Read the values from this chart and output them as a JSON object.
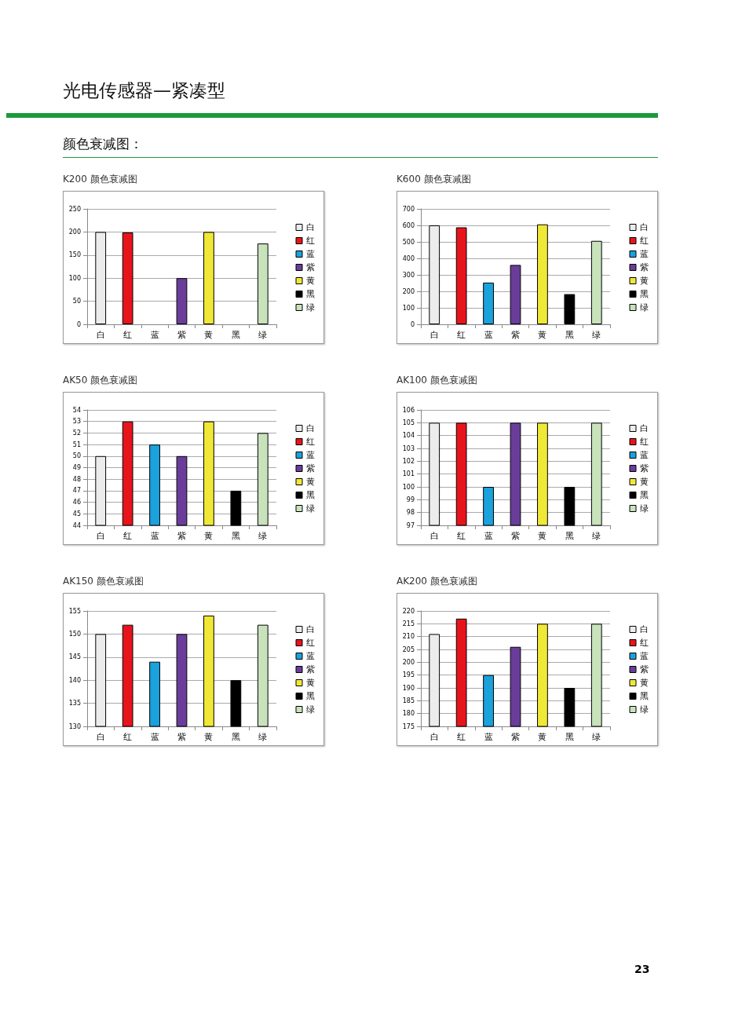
{
  "chart_data": [
    {
      "type": "bar",
      "title": "K200 颜色衰减图",
      "annotations": [
        "光电传感器—紧凑型",
        "颜色衰减图："
      ],
      "categories": [
        "白",
        "红",
        "蓝",
        "紫",
        "黄",
        "黑",
        "绿"
      ],
      "series": [
        {
          "name": "白",
          "color": "#ececec",
          "values": [
            200,
            null,
            null,
            null,
            null,
            null,
            null
          ]
        },
        {
          "name": "红",
          "color": "#e8141b",
          "values": [
            null,
            199,
            null,
            null,
            null,
            null,
            null
          ]
        },
        {
          "name": "蓝",
          "color": "#1ba1db",
          "values": [
            null,
            null,
            null,
            null,
            null,
            null,
            null
          ]
        },
        {
          "name": "紫",
          "color": "#6a3d9a",
          "values": [
            null,
            null,
            null,
            100,
            null,
            null,
            null
          ]
        },
        {
          "name": "黄",
          "color": "#f0e836",
          "values": [
            null,
            null,
            null,
            null,
            200,
            null,
            null
          ]
        },
        {
          "name": "黑",
          "color": "#000000",
          "values": [
            null,
            null,
            null,
            null,
            null,
            null,
            null
          ]
        },
        {
          "name": "绿",
          "color": "#c8e2bb",
          "values": [
            null,
            null,
            null,
            null,
            null,
            null,
            175
          ]
        }
      ],
      "ylim": [
        0,
        250
      ],
      "yticks": [
        0,
        50,
        100,
        150,
        200,
        250
      ],
      "grid": "y",
      "legend": "right"
    },
    {
      "type": "bar",
      "title": "K600 颜色衰减图",
      "categories": [
        "白",
        "红",
        "蓝",
        "紫",
        "黄",
        "黑",
        "绿"
      ],
      "series": [
        {
          "name": "白",
          "color": "#ececec",
          "values": [
            600,
            null,
            null,
            null,
            null,
            null,
            null
          ]
        },
        {
          "name": "红",
          "color": "#e8141b",
          "values": [
            null,
            588,
            null,
            null,
            null,
            null,
            null
          ]
        },
        {
          "name": "蓝",
          "color": "#1ba1db",
          "values": [
            null,
            null,
            253,
            null,
            null,
            null,
            null
          ]
        },
        {
          "name": "紫",
          "color": "#6a3d9a",
          "values": [
            null,
            null,
            null,
            360,
            null,
            null,
            null
          ]
        },
        {
          "name": "黄",
          "color": "#f0e836",
          "values": [
            null,
            null,
            null,
            null,
            606,
            null,
            null
          ]
        },
        {
          "name": "黑",
          "color": "#000000",
          "values": [
            null,
            null,
            null,
            null,
            null,
            183,
            null
          ]
        },
        {
          "name": "绿",
          "color": "#c8e2bb",
          "values": [
            null,
            null,
            null,
            null,
            null,
            null,
            506
          ]
        }
      ],
      "ylim": [
        0,
        700
      ],
      "yticks": [
        0,
        100,
        200,
        300,
        400,
        500,
        600,
        700
      ],
      "grid": "y",
      "legend": "right"
    },
    {
      "type": "bar",
      "title": "AK50 颜色衰减图",
      "categories": [
        "白",
        "红",
        "蓝",
        "紫",
        "黄",
        "黑",
        "绿"
      ],
      "series": [
        {
          "name": "白",
          "color": "#ececec",
          "values": [
            50,
            null,
            null,
            null,
            null,
            null,
            null
          ]
        },
        {
          "name": "红",
          "color": "#e8141b",
          "values": [
            null,
            53,
            null,
            null,
            null,
            null,
            null
          ]
        },
        {
          "name": "蓝",
          "color": "#1ba1db",
          "values": [
            null,
            null,
            51,
            null,
            null,
            null,
            null
          ]
        },
        {
          "name": "紫",
          "color": "#6a3d9a",
          "values": [
            null,
            null,
            null,
            50,
            null,
            null,
            null
          ]
        },
        {
          "name": "黄",
          "color": "#f0e836",
          "values": [
            null,
            null,
            null,
            null,
            53,
            null,
            null
          ]
        },
        {
          "name": "黑",
          "color": "#000000",
          "values": [
            null,
            null,
            null,
            null,
            null,
            47,
            null
          ]
        },
        {
          "name": "绿",
          "color": "#c8e2bb",
          "values": [
            null,
            null,
            null,
            null,
            null,
            null,
            52
          ]
        }
      ],
      "ylim": [
        44,
        54
      ],
      "yticks": [
        44,
        45,
        46,
        47,
        48,
        49,
        50,
        51,
        52,
        53,
        54
      ],
      "grid": "y",
      "legend": "right"
    },
    {
      "type": "bar",
      "title": "AK100 颜色衰减图",
      "categories": [
        "白",
        "红",
        "蓝",
        "紫",
        "黄",
        "黑",
        "绿"
      ],
      "series": [
        {
          "name": "白",
          "color": "#ececec",
          "values": [
            105,
            null,
            null,
            null,
            null,
            null,
            null
          ]
        },
        {
          "name": "红",
          "color": "#e8141b",
          "values": [
            null,
            105,
            null,
            null,
            null,
            null,
            null
          ]
        },
        {
          "name": "蓝",
          "color": "#1ba1db",
          "values": [
            null,
            null,
            100,
            null,
            null,
            null,
            null
          ]
        },
        {
          "name": "紫",
          "color": "#6a3d9a",
          "values": [
            null,
            null,
            null,
            105,
            null,
            null,
            null
          ]
        },
        {
          "name": "黄",
          "color": "#f0e836",
          "values": [
            null,
            null,
            null,
            null,
            105,
            null,
            null
          ]
        },
        {
          "name": "黑",
          "color": "#000000",
          "values": [
            null,
            null,
            null,
            null,
            null,
            100,
            null
          ]
        },
        {
          "name": "绿",
          "color": "#c8e2bb",
          "values": [
            null,
            null,
            null,
            null,
            null,
            null,
            105
          ]
        }
      ],
      "ylim": [
        97,
        106
      ],
      "yticks": [
        97,
        98,
        99,
        100,
        101,
        102,
        103,
        104,
        105,
        106
      ],
      "grid": "y",
      "legend": "right"
    },
    {
      "type": "bar",
      "title": "AK150 颜色衰减图",
      "categories": [
        "白",
        "红",
        "蓝",
        "紫",
        "黄",
        "黑",
        "绿"
      ],
      "series": [
        {
          "name": "白",
          "color": "#ececec",
          "values": [
            150,
            null,
            null,
            null,
            null,
            null,
            null
          ]
        },
        {
          "name": "红",
          "color": "#e8141b",
          "values": [
            null,
            152,
            null,
            null,
            null,
            null,
            null
          ]
        },
        {
          "name": "蓝",
          "color": "#1ba1db",
          "values": [
            null,
            null,
            144,
            null,
            null,
            null,
            null
          ]
        },
        {
          "name": "紫",
          "color": "#6a3d9a",
          "values": [
            null,
            null,
            null,
            150,
            null,
            null,
            null
          ]
        },
        {
          "name": "黄",
          "color": "#f0e836",
          "values": [
            null,
            null,
            null,
            null,
            154,
            null,
            null
          ]
        },
        {
          "name": "黑",
          "color": "#000000",
          "values": [
            null,
            null,
            null,
            null,
            null,
            140,
            null
          ]
        },
        {
          "name": "绿",
          "color": "#c8e2bb",
          "values": [
            null,
            null,
            null,
            null,
            null,
            null,
            152
          ]
        }
      ],
      "ylim": [
        130,
        155
      ],
      "yticks": [
        130,
        135,
        140,
        145,
        150,
        155
      ],
      "grid": "y",
      "legend": "right"
    },
    {
      "type": "bar",
      "title": "AK200 颜色衰减图",
      "annotations": [
        "23"
      ],
      "categories": [
        "白",
        "红",
        "蓝",
        "紫",
        "黄",
        "黑",
        "绿"
      ],
      "series": [
        {
          "name": "白",
          "color": "#ececec",
          "values": [
            211,
            null,
            null,
            null,
            null,
            null,
            null
          ]
        },
        {
          "name": "红",
          "color": "#e8141b",
          "values": [
            null,
            217,
            null,
            null,
            null,
            null,
            null
          ]
        },
        {
          "name": "蓝",
          "color": "#1ba1db",
          "values": [
            null,
            null,
            195,
            null,
            null,
            null,
            null
          ]
        },
        {
          "name": "紫",
          "color": "#6a3d9a",
          "values": [
            null,
            null,
            null,
            206,
            null,
            null,
            null
          ]
        },
        {
          "name": "黄",
          "color": "#f0e836",
          "values": [
            null,
            null,
            null,
            null,
            215,
            null,
            null
          ]
        },
        {
          "name": "黑",
          "color": "#000000",
          "values": [
            null,
            null,
            null,
            null,
            null,
            190,
            null
          ]
        },
        {
          "name": "绿",
          "color": "#c8e2bb",
          "values": [
            null,
            null,
            null,
            null,
            null,
            null,
            215
          ]
        }
      ],
      "ylim": [
        175,
        220
      ],
      "yticks": [
        175,
        180,
        185,
        190,
        195,
        200,
        205,
        210,
        215,
        220
      ],
      "grid": "y",
      "legend": "right"
    }
  ]
}
